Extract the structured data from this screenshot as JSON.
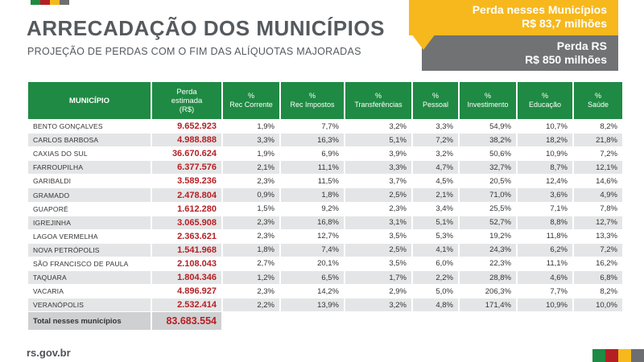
{
  "header": {
    "title": "ARRECADAÇÃO DOS MUNICÍPIOS",
    "subtitle": "PROJEÇÃO DE PERDAS COM O FIM DAS ALÍQUOTAS MAJORADAS"
  },
  "callouts": {
    "municipios_line1": "Perda nesses Municípios",
    "municipios_line2": "R$ 83,7 milhões",
    "rs_line1": "Perda RS",
    "rs_line2": "R$ 850 milhões"
  },
  "colors": {
    "green": "#1f8a43",
    "red": "#b51f24",
    "yellow": "#f6b81c",
    "gray": "#6d6e71"
  },
  "table": {
    "headers": {
      "municipio": "MUNICÍPIO",
      "perda_line1": "Perda",
      "perda_line2": "estimada",
      "perda_line3": "(R$)",
      "rec_corrente_pct": "%",
      "rec_corrente": "Rec Corrente",
      "rec_impostos_pct": "%",
      "rec_impostos": "Rec Impostos",
      "transferencias_pct": "%",
      "transferencias": "Transferências",
      "pessoal_pct": "%",
      "pessoal": "Pessoal",
      "investimento_pct": "%",
      "investimento": "Investimento",
      "educacao_pct": "%",
      "educacao": "Educação",
      "saude_pct": "%",
      "saude": "Saúde"
    },
    "rows": [
      [
        "BENTO GONÇALVES",
        "9.652.923",
        "1,9%",
        "7,7%",
        "3,2%",
        "3,3%",
        "54,9%",
        "10,7%",
        "8,2%"
      ],
      [
        "CARLOS BARBOSA",
        "4.988.888",
        "3,3%",
        "16,3%",
        "5,1%",
        "7,2%",
        "38,2%",
        "18,2%",
        "21,8%"
      ],
      [
        "CAXIAS DO SUL",
        "36.670.624",
        "1,9%",
        "6,9%",
        "3,9%",
        "3,2%",
        "50,6%",
        "10,9%",
        "7,2%"
      ],
      [
        "FARROUPILHA",
        "6.377.576",
        "2,1%",
        "11,1%",
        "3,3%",
        "4,7%",
        "32,7%",
        "8,7%",
        "12,1%"
      ],
      [
        "GARIBALDI",
        "3.589.236",
        "2,3%",
        "11,5%",
        "3,7%",
        "4,5%",
        "20,5%",
        "12,4%",
        "14,6%"
      ],
      [
        "GRAMADO",
        "2.478.804",
        "0,9%",
        "1,8%",
        "2,5%",
        "2,1%",
        "71,0%",
        "3,6%",
        "4,9%"
      ],
      [
        "GUAPORÉ",
        "1.612.280",
        "1,5%",
        "9,2%",
        "2,3%",
        "3,4%",
        "25,5%",
        "7,1%",
        "7,8%"
      ],
      [
        "IGREJINHA",
        "3.065.908",
        "2,3%",
        "16,8%",
        "3,1%",
        "5,1%",
        "52,7%",
        "8,8%",
        "12,7%"
      ],
      [
        "LAGOA VERMELHA",
        "2.363.621",
        "2,3%",
        "12,7%",
        "3,5%",
        "5,3%",
        "19,2%",
        "11,8%",
        "13,3%"
      ],
      [
        "NOVA PETRÓPOLIS",
        "1.541.968",
        "1,8%",
        "7,4%",
        "2,5%",
        "4,1%",
        "24,3%",
        "6,2%",
        "7,2%"
      ],
      [
        "SÃO FRANCISCO DE PAULA",
        "2.108.043",
        "2,7%",
        "20,1%",
        "3,5%",
        "6,0%",
        "22,3%",
        "11,1%",
        "16,2%"
      ],
      [
        "TAQUARA",
        "1.804.346",
        "1,2%",
        "6,5%",
        "1,7%",
        "2,2%",
        "28,8%",
        "4,6%",
        "6,8%"
      ],
      [
        "VACARIA",
        "4.896.927",
        "2,3%",
        "14,2%",
        "2,9%",
        "5,0%",
        "206,3%",
        "7,7%",
        "8,2%"
      ],
      [
        "VERANÓPOLIS",
        "2.532.414",
        "2,2%",
        "13,9%",
        "3,2%",
        "4,8%",
        "171,4%",
        "10,9%",
        "10,0%"
      ]
    ],
    "total_label": "Total nesses municípios",
    "total_value": "83.683.554"
  },
  "footer": {
    "site": "rs.gov.br"
  }
}
